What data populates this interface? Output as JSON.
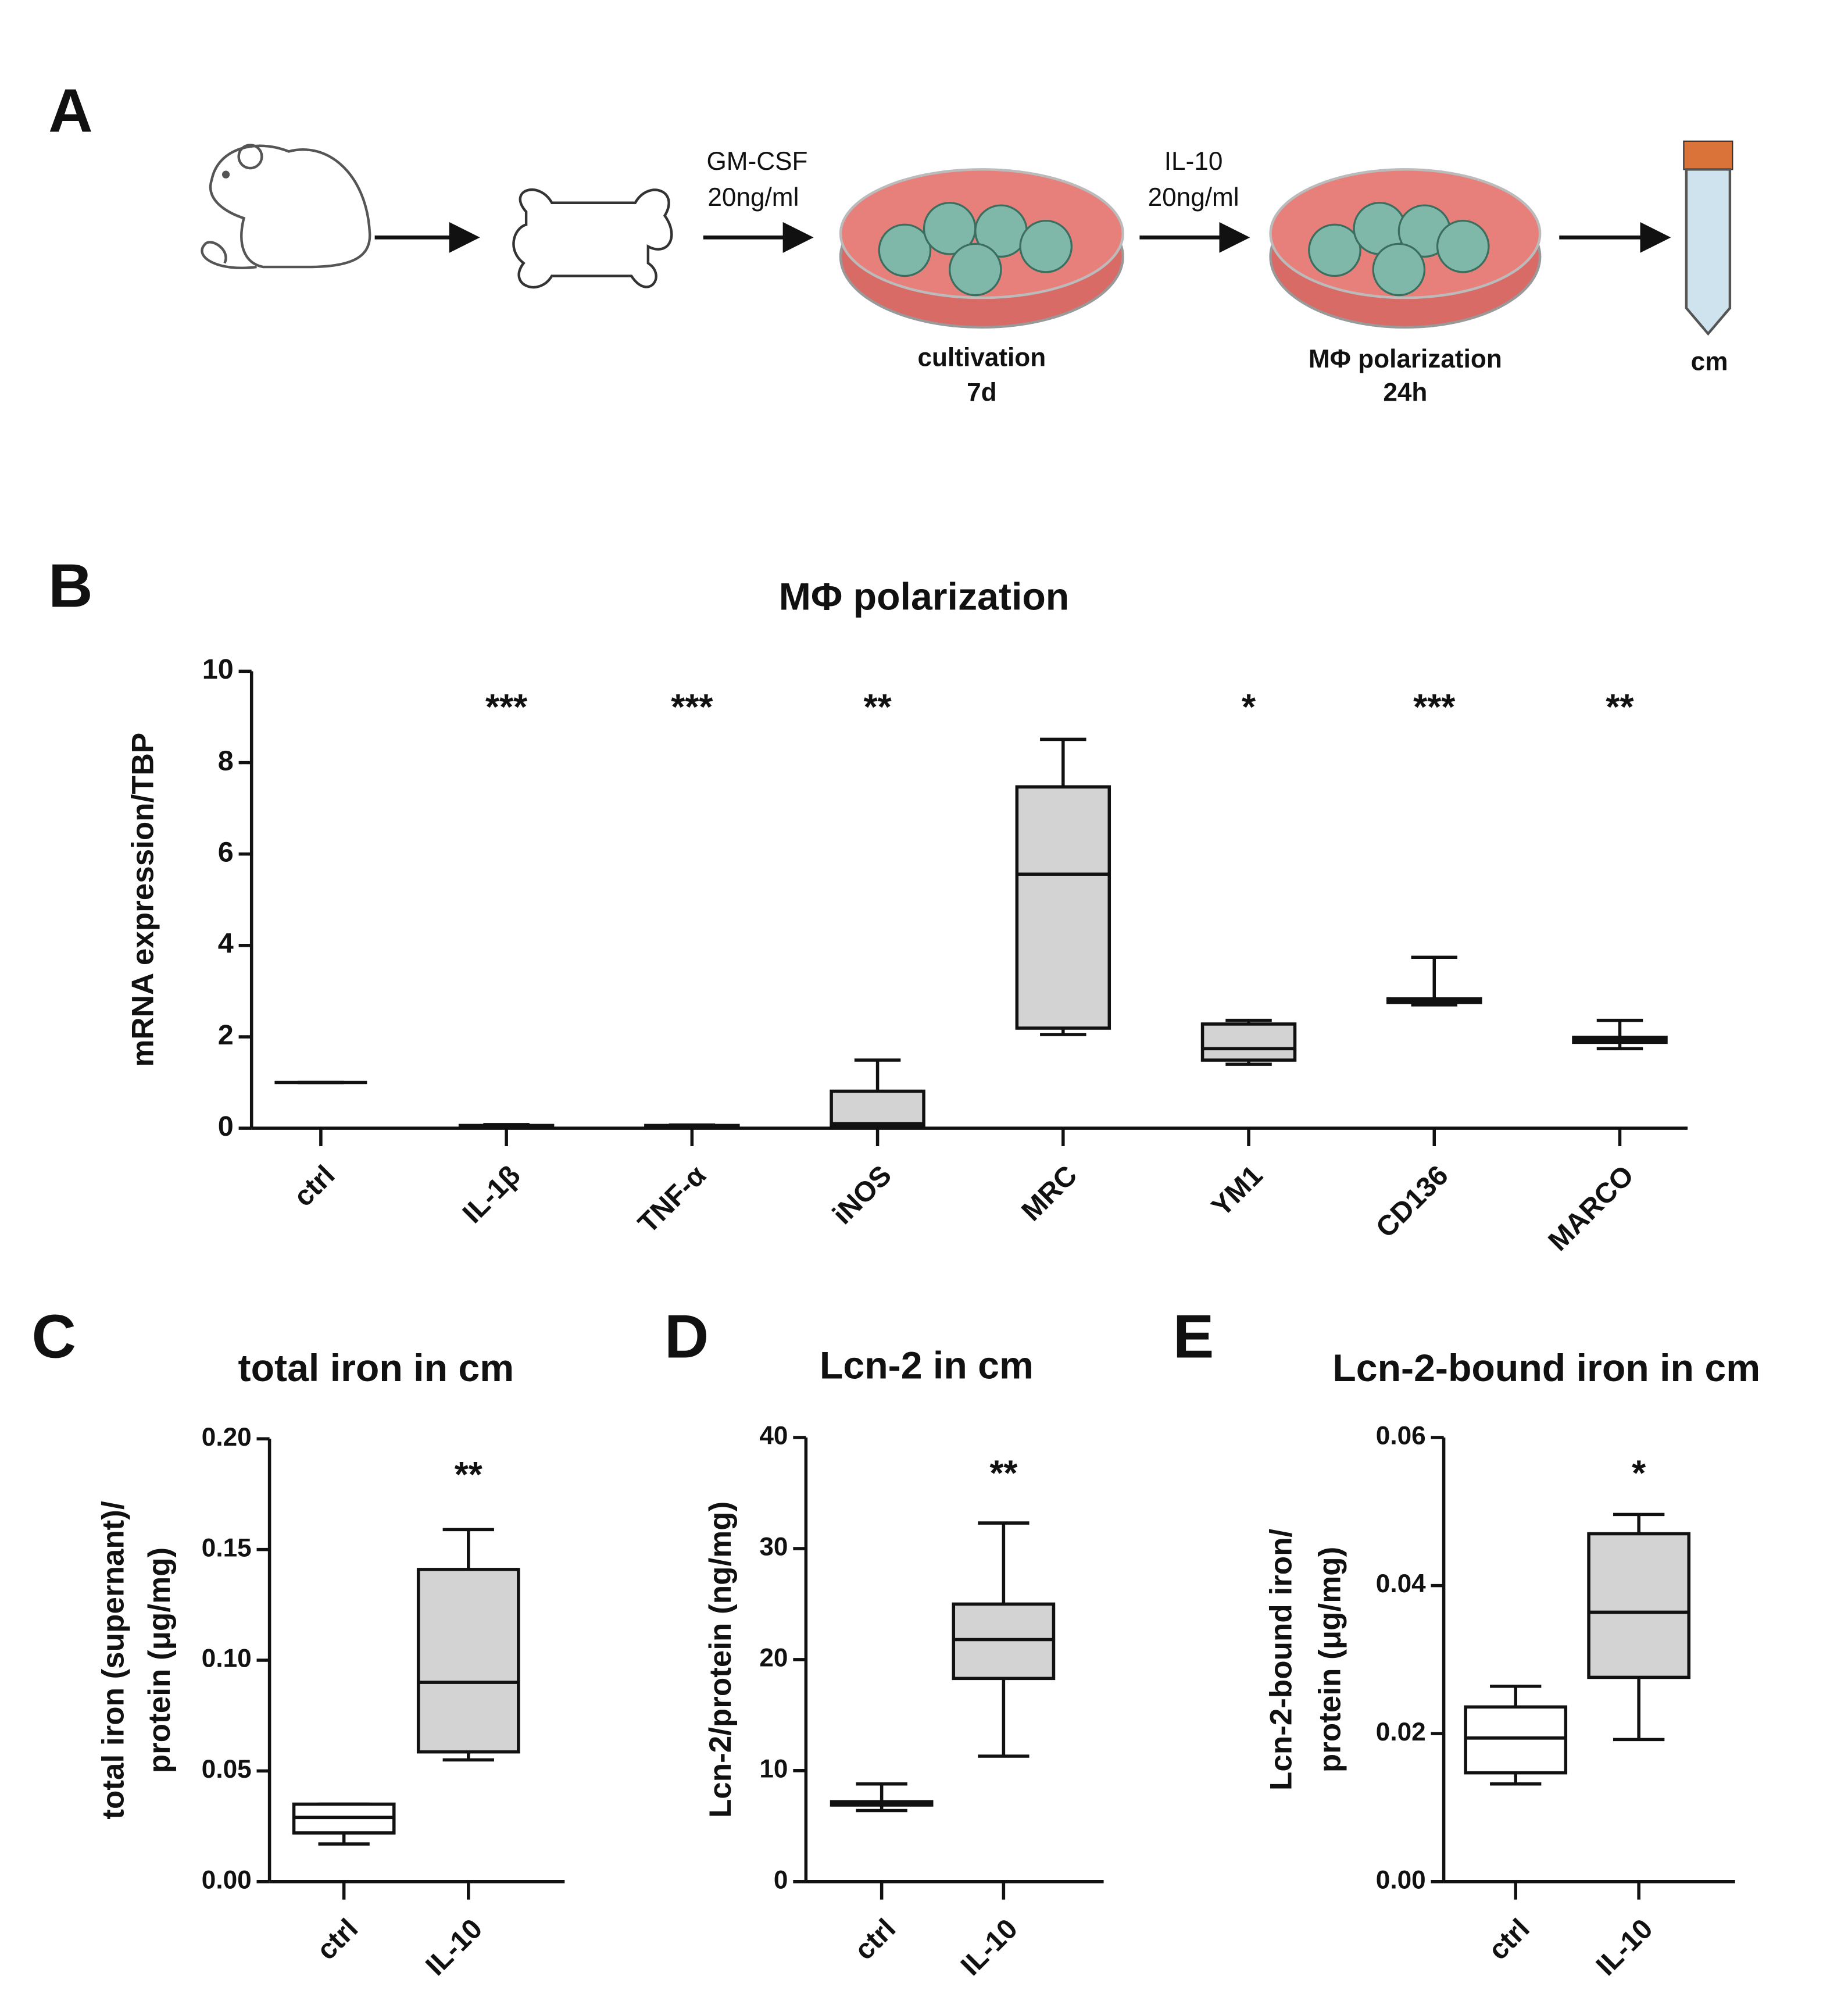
{
  "panel_a": {
    "panel": "A",
    "arrow_labels": [
      [
        "GM-CSF",
        "20ng/ml"
      ],
      [
        "IL-10",
        "20ng/ml"
      ]
    ],
    "stage_labels": [
      [
        "cultivation",
        "7d"
      ],
      [
        "MΦ polarization",
        "24h"
      ],
      [
        "cm"
      ]
    ]
  },
  "chart_data": [
    {
      "type": "box",
      "panel": "B",
      "title": "MΦ polarization",
      "ylabel": [
        "mRNA expression/TBP"
      ],
      "categories": [
        "ctrl",
        "IL-1β",
        "TNF-α",
        "iNOS",
        "MRC",
        "YM1",
        "CD136",
        "MARCO"
      ],
      "boxes": [
        {
          "min": 1,
          "q1": 1,
          "median": 1,
          "q3": 1,
          "max": 1
        },
        {
          "min": 0.03,
          "q1": 0.04,
          "median": 0.05,
          "q3": 0.06,
          "max": 0.08
        },
        {
          "min": 0.03,
          "q1": 0.04,
          "median": 0.05,
          "q3": 0.06,
          "max": 0.07
        },
        {
          "min": 0.02,
          "q1": 0.05,
          "median": 0.1,
          "q3": 0.81,
          "max": 1.49
        },
        {
          "min": 2.05,
          "q1": 2.19,
          "median": 5.56,
          "q3": 7.47,
          "max": 8.51
        },
        {
          "min": 1.4,
          "q1": 1.49,
          "median": 1.74,
          "q3": 2.28,
          "max": 2.36
        },
        {
          "min": 2.7,
          "q1": 2.75,
          "median": 2.81,
          "q3": 2.83,
          "max": 3.74
        },
        {
          "min": 1.74,
          "q1": 1.88,
          "median": 1.94,
          "q3": 1.99,
          "max": 2.36
        }
      ],
      "colors": [
        "#ffffff",
        "#d3d3d3",
        "#d3d3d3",
        "#d3d3d3",
        "#d3d3d3",
        "#d3d3d3",
        "#d3d3d3",
        "#d3d3d3"
      ],
      "significance": [
        null,
        "***",
        "***",
        "**",
        null,
        "*",
        "***",
        "**"
      ],
      "ylim": [
        0,
        10
      ],
      "yticks": [
        0,
        2,
        4,
        6,
        8,
        10
      ],
      "grid": false
    },
    {
      "type": "box",
      "panel": "C",
      "title": "total iron in cm",
      "ylabel": [
        "total iron (supernant)/",
        "protein (μg/mg)"
      ],
      "categories": [
        "ctrl",
        "IL-10"
      ],
      "boxes": [
        {
          "min": 0.017,
          "q1": 0.022,
          "median": 0.029,
          "q3": 0.035,
          "max": 0.035
        },
        {
          "min": 0.055,
          "q1": 0.0586,
          "median": 0.09,
          "q3": 0.141,
          "max": 0.159
        }
      ],
      "colors": [
        "#ffffff",
        "#d3d3d3"
      ],
      "significance": [
        null,
        "**"
      ],
      "ylim": [
        0,
        0.2
      ],
      "yticks": [
        {
          "value": 0,
          "label": "0.00"
        },
        {
          "value": 0.05,
          "label": "0.05"
        },
        {
          "value": 0.1,
          "label": "0.10"
        },
        {
          "value": 0.15,
          "label": "0.15"
        },
        {
          "value": 0.2,
          "label": "0.20"
        }
      ],
      "grid": false
    },
    {
      "type": "box",
      "panel": "D",
      "title": "Lcn-2 in cm",
      "ylabel": [
        "Lcn-2/protein (ng/mg)"
      ],
      "categories": [
        "ctrl",
        "IL-10"
      ],
      "boxes": [
        {
          "min": 6.4,
          "q1": 6.9,
          "median": 7.05,
          "q3": 7.2,
          "max": 8.8
        },
        {
          "min": 11.3,
          "q1": 18.3,
          "median": 21.8,
          "q3": 25,
          "max": 32.3
        }
      ],
      "colors": [
        "#ffffff",
        "#d3d3d3"
      ],
      "significance": [
        null,
        "**"
      ],
      "ylim": [
        0,
        40
      ],
      "yticks": [
        0,
        10,
        20,
        30,
        40
      ],
      "grid": false
    },
    {
      "type": "box",
      "panel": "E",
      "title": "Lcn-2-bound iron in cm",
      "ylabel": [
        "Lcn-2-bound iron/",
        "protein (μg/mg)"
      ],
      "categories": [
        "ctrl",
        "IL-10"
      ],
      "boxes": [
        {
          "min": 0.0132,
          "q1": 0.0147,
          "median": 0.0194,
          "q3": 0.0236,
          "max": 0.0264
        },
        {
          "min": 0.0192,
          "q1": 0.0276,
          "median": 0.0364,
          "q3": 0.047,
          "max": 0.0496
        }
      ],
      "colors": [
        "#ffffff",
        "#d3d3d3"
      ],
      "significance": [
        null,
        "*"
      ],
      "ylim": [
        0,
        0.06
      ],
      "yticks": [
        {
          "value": 0,
          "label": "0.00"
        },
        {
          "value": 0.02,
          "label": "0.02"
        },
        {
          "value": 0.04,
          "label": "0.04"
        },
        {
          "value": 0.06,
          "label": "0.06"
        }
      ],
      "grid": false
    }
  ]
}
